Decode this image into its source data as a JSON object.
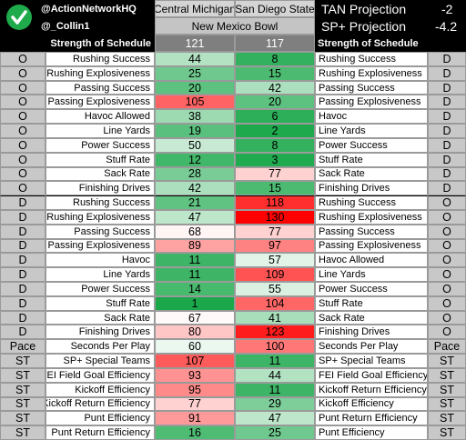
{
  "header": {
    "handles": [
      "@ActionNetworkHQ",
      "@_Collin1"
    ],
    "teams": [
      "Central Michigan",
      "San Diego State"
    ],
    "game": "New Mexico Bowl",
    "projections": [
      {
        "label": "TAN Projection",
        "value": "-2"
      },
      {
        "label": "SP+ Projection",
        "value": "-4.2"
      }
    ],
    "sos": {
      "label_left": "Strength of Schedule",
      "values": [
        121,
        117
      ],
      "label_right": "Strength of Schedule"
    }
  },
  "color_scale": {
    "low": "#1aa84a",
    "mid": "#ffffff",
    "high": "#ff0000"
  },
  "table": {
    "rows": [
      [
        "O",
        "Rushing Success",
        44,
        8,
        "Rushing Success",
        "D"
      ],
      [
        "O",
        "Rushing Explosiveness",
        25,
        15,
        "Rushing Explosiveness",
        "D"
      ],
      [
        "O",
        "Passing Success",
        20,
        42,
        "Passing Success",
        "D"
      ],
      [
        "O",
        "Passing Explosiveness",
        105,
        20,
        "Passing Explosiveness",
        "D"
      ],
      [
        "O",
        "Havoc Allowed",
        38,
        6,
        "Havoc",
        "D"
      ],
      [
        "O",
        "Line Yards",
        19,
        2,
        "Line Yards",
        "D"
      ],
      [
        "O",
        "Power Success",
        50,
        8,
        "Power Success",
        "D"
      ],
      [
        "O",
        "Stuff Rate",
        12,
        3,
        "Stuff Rate",
        "D"
      ],
      [
        "O",
        "Sack Rate",
        28,
        77,
        "Sack Rate",
        "D"
      ],
      [
        "O",
        "Finishing Drives",
        42,
        15,
        "Finishing Drives",
        "D"
      ],
      [
        "D",
        "Rushing Success",
        21,
        118,
        "Rushing Success",
        "O"
      ],
      [
        "D",
        "Rushing Explosiveness",
        47,
        130,
        "Rushing Explosiveness",
        "O"
      ],
      [
        "D",
        "Passing Success",
        68,
        77,
        "Passing Success",
        "O"
      ],
      [
        "D",
        "Passing Explosiveness",
        89,
        97,
        "Passing Explosiveness",
        "O"
      ],
      [
        "D",
        "Havoc",
        11,
        57,
        "Havoc Allowed",
        "O"
      ],
      [
        "D",
        "Line Yards",
        11,
        109,
        "Line Yards",
        "O"
      ],
      [
        "D",
        "Power Success",
        14,
        55,
        "Power Success",
        "O"
      ],
      [
        "D",
        "Stuff Rate",
        1,
        104,
        "Stuff Rate",
        "O"
      ],
      [
        "D",
        "Sack Rate",
        67,
        41,
        "Sack Rate",
        "O"
      ],
      [
        "D",
        "Finishing Drives",
        80,
        123,
        "Finishing Drives",
        "O"
      ],
      [
        "Pace",
        "Seconds Per Play",
        60,
        100,
        "Seconds Per Play",
        "Pace"
      ],
      [
        "ST",
        "SP+ Special Teams",
        107,
        11,
        "SP+ Special Teams",
        "ST"
      ],
      [
        "ST",
        "FEI Field Goal Efficiency",
        93,
        44,
        "FEI Field Goal Efficiency",
        "ST"
      ],
      [
        "ST",
        "Kickoff Efficiency",
        95,
        11,
        "Kickoff Return Efficiency",
        "ST"
      ],
      [
        "ST",
        "Kickoff Return Efficiency",
        77,
        29,
        "Kickoff Efficiency",
        "ST"
      ],
      [
        "ST",
        "Punt Efficiency",
        91,
        47,
        "Punt Return Efficiency",
        "ST"
      ],
      [
        "ST",
        "Punt Return Efficiency",
        16,
        25,
        "Punt Efficiency",
        "ST"
      ]
    ]
  }
}
